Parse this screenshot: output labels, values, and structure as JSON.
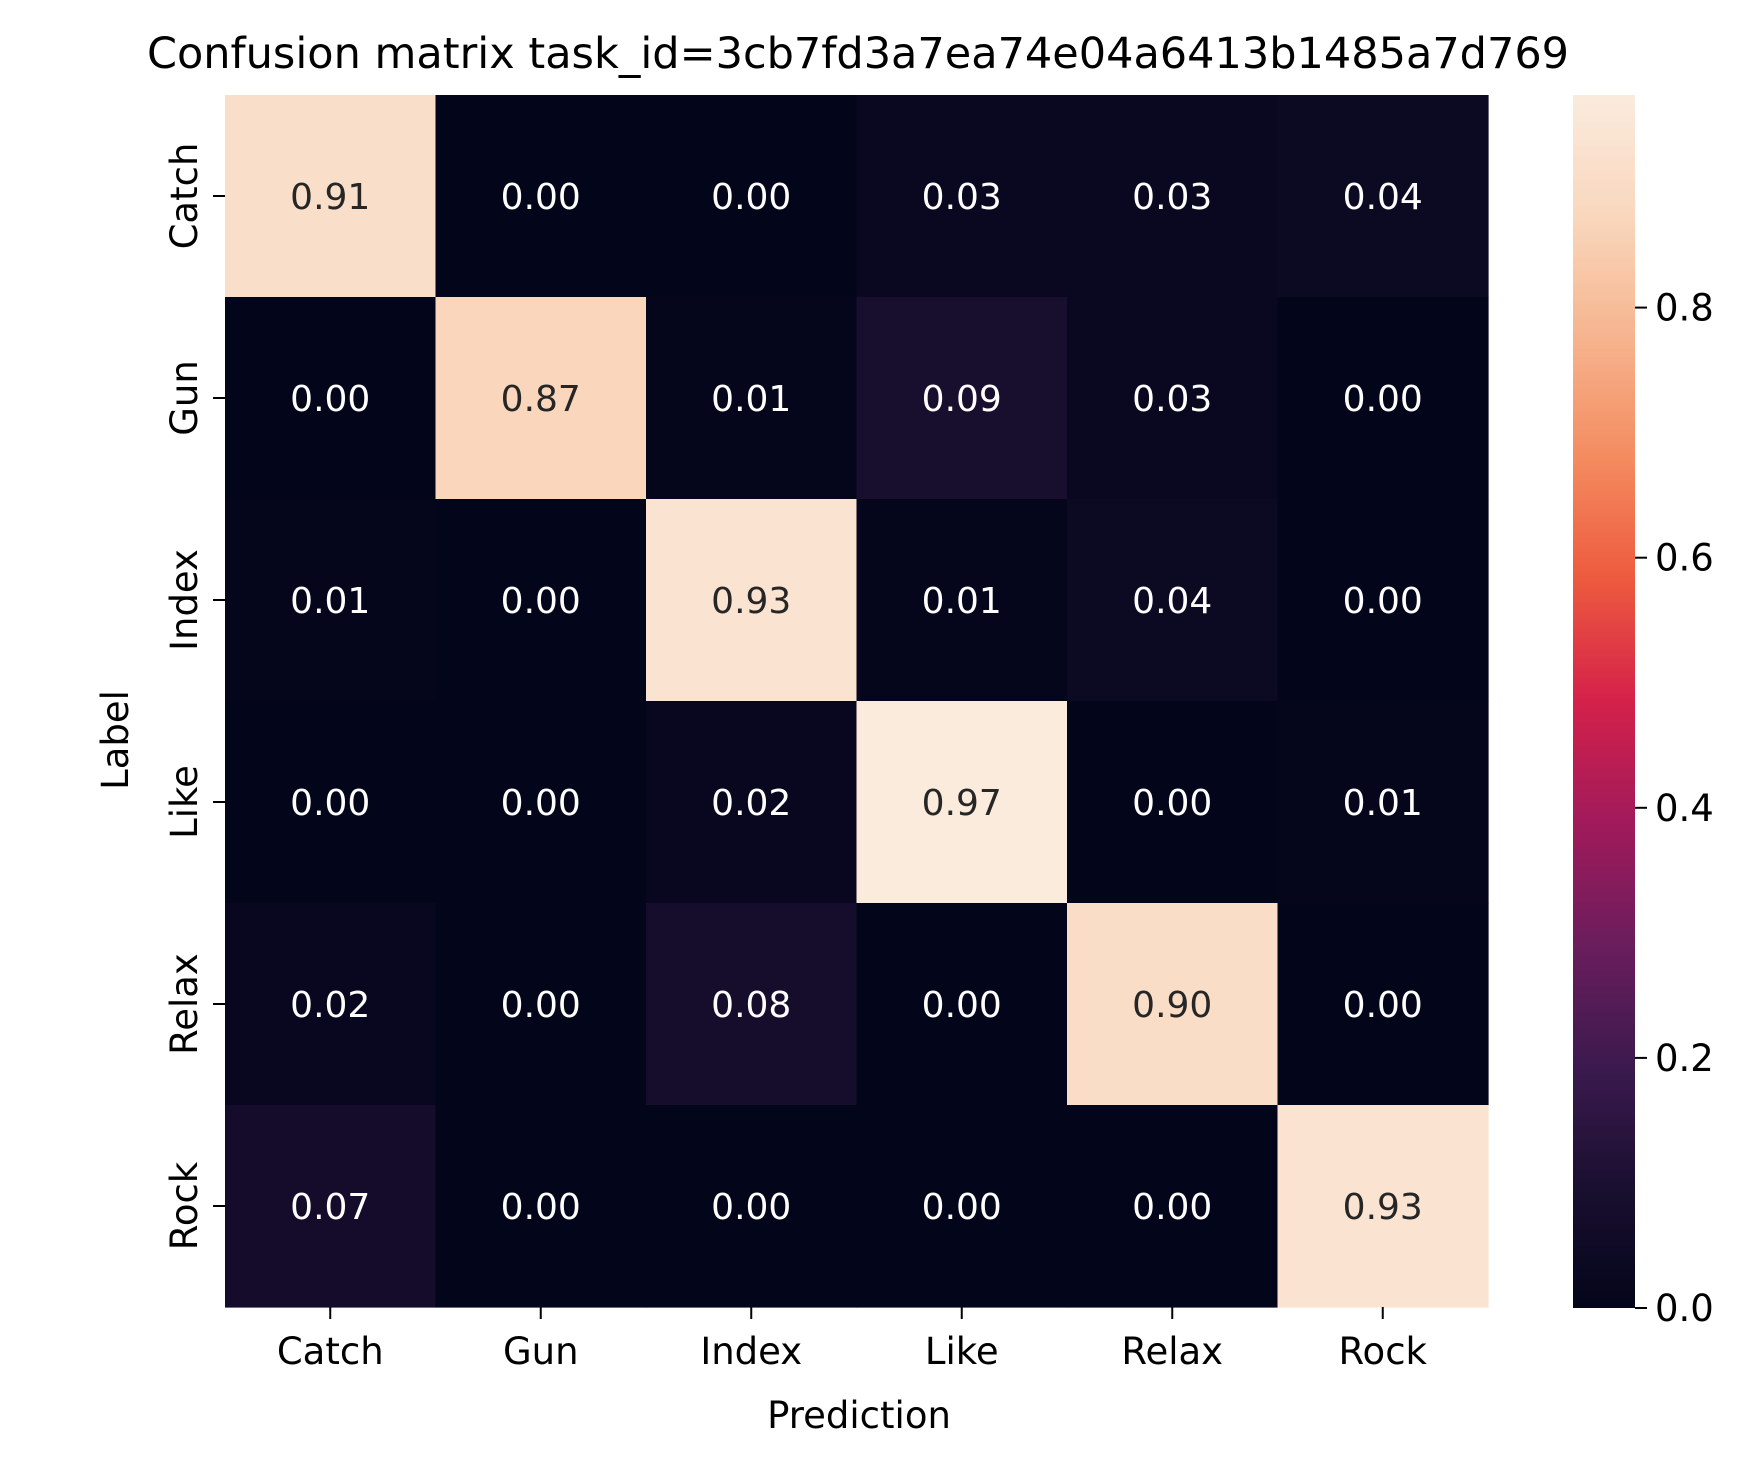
{
  "chart_data": {
    "type": "heatmap",
    "title": "Confusion matrix task_id=3cb7fd3a7ea74e04a6413b1485a7d769",
    "xlabel": "Prediction",
    "ylabel": "Label",
    "x_categories": [
      "Catch",
      "Gun",
      "Index",
      "Like",
      "Relax",
      "Rock"
    ],
    "y_categories": [
      "Catch",
      "Gun",
      "Index",
      "Like",
      "Relax",
      "Rock"
    ],
    "values": [
      [
        0.91,
        0.0,
        0.0,
        0.03,
        0.03,
        0.04
      ],
      [
        0.0,
        0.87,
        0.01,
        0.09,
        0.03,
        0.0
      ],
      [
        0.01,
        0.0,
        0.93,
        0.01,
        0.04,
        0.0
      ],
      [
        0.0,
        0.0,
        0.02,
        0.97,
        0.0,
        0.01
      ],
      [
        0.02,
        0.0,
        0.08,
        0.0,
        0.9,
        0.0
      ],
      [
        0.07,
        0.0,
        0.0,
        0.0,
        0.0,
        0.93
      ]
    ],
    "value_labels": [
      [
        "0.91",
        "0.00",
        "0.00",
        "0.03",
        "0.03",
        "0.04"
      ],
      [
        "0.00",
        "0.87",
        "0.01",
        "0.09",
        "0.03",
        "0.00"
      ],
      [
        "0.01",
        "0.00",
        "0.93",
        "0.01",
        "0.04",
        "0.00"
      ],
      [
        "0.00",
        "0.00",
        "0.02",
        "0.97",
        "0.00",
        "0.01"
      ],
      [
        "0.02",
        "0.00",
        "0.08",
        "0.00",
        "0.90",
        "0.00"
      ],
      [
        "0.07",
        "0.00",
        "0.00",
        "0.00",
        "0.00",
        "0.93"
      ]
    ],
    "colorbar": {
      "range": [
        0.0,
        0.97
      ],
      "ticks": [
        0.0,
        0.2,
        0.4,
        0.6,
        0.8
      ],
      "tick_labels": [
        "0.0",
        "0.2",
        "0.4",
        "0.6",
        "0.8"
      ]
    },
    "colormap": {
      "name": "rocket",
      "stops": [
        "#03051a",
        "#1a0f30",
        "#3c1a4f",
        "#6b1d5c",
        "#a11a5b",
        "#d4214a",
        "#ed5a3e",
        "#f48b5f",
        "#f6b48e",
        "#f9d7bd",
        "#faebdd"
      ]
    },
    "annotation_colors": {
      "light": "#ffffff",
      "dark": "#262626"
    },
    "grid": false,
    "legend": "none"
  }
}
